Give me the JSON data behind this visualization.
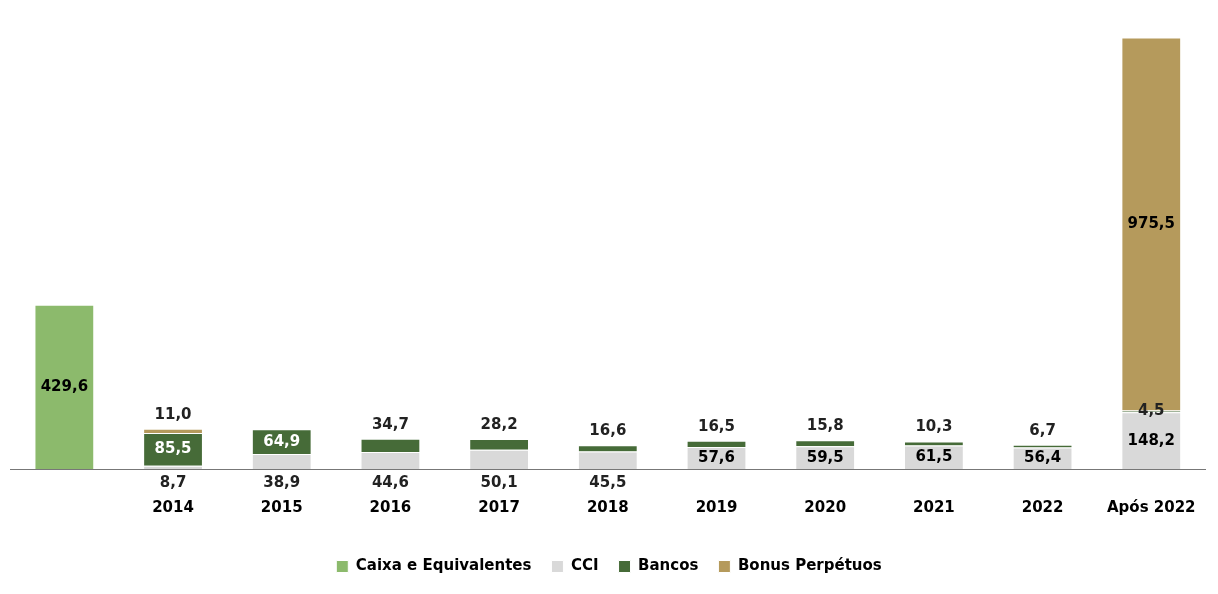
{
  "chart_data": {
    "type": "bar",
    "stacked": true,
    "data_labels": true,
    "legend": "bottom",
    "grid": false,
    "categories": [
      null,
      "2014",
      "2015",
      "2016",
      "2017",
      "2018",
      "2019",
      "2020",
      "2021",
      "2022",
      "Após 2022"
    ],
    "series": [
      {
        "name": "Caixa e Equivalentes",
        "color": "#8cba6c",
        "values": [
          429.6,
          null,
          null,
          null,
          null,
          null,
          null,
          null,
          null,
          null,
          null
        ],
        "value_labels": [
          "429,6",
          null,
          null,
          null,
          null,
          null,
          null,
          null,
          null,
          null,
          null
        ]
      },
      {
        "name": "CCI",
        "color": "#d9d9d9",
        "values": [
          null,
          8.7,
          38.9,
          44.6,
          50.1,
          45.5,
          57.6,
          59.5,
          61.5,
          56.4,
          148.2
        ],
        "value_labels": [
          null,
          "8,7",
          "38,9",
          "44,6",
          "50,1",
          "45,5",
          "57,6",
          "59,5",
          "61,5",
          "56,4",
          "148,2"
        ]
      },
      {
        "name": "Bancos",
        "color": "#466b38",
        "values": [
          null,
          85.5,
          64.9,
          34.7,
          28.2,
          16.6,
          16.5,
          15.8,
          10.3,
          6.7,
          4.5
        ],
        "value_labels": [
          null,
          "85,5",
          "64,9",
          "34,7",
          "28,2",
          "16,6",
          "16,5",
          "15,8",
          "10,3",
          "6,7",
          "4,5"
        ]
      },
      {
        "name": "Bonus Perpétuos",
        "color": "#b59a5c",
        "values": [
          null,
          11.0,
          null,
          null,
          null,
          null,
          null,
          null,
          null,
          null,
          975.5
        ],
        "value_labels": [
          null,
          "11,0",
          null,
          null,
          null,
          null,
          null,
          null,
          null,
          null,
          "975,5"
        ]
      }
    ]
  }
}
